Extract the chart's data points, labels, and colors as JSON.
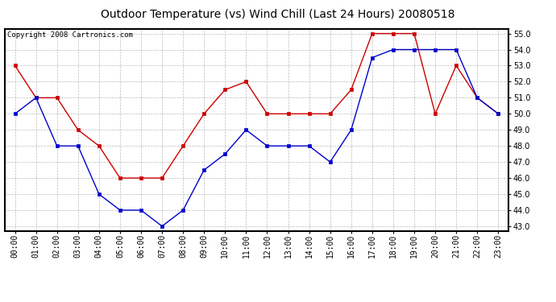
{
  "title": "Outdoor Temperature (vs) Wind Chill (Last 24 Hours) 20080518",
  "copyright_text": "Copyright 2008 Cartronics.com",
  "x_labels": [
    "00:00",
    "01:00",
    "02:00",
    "03:00",
    "04:00",
    "05:00",
    "06:00",
    "07:00",
    "08:00",
    "09:00",
    "10:00",
    "11:00",
    "12:00",
    "13:00",
    "14:00",
    "15:00",
    "16:00",
    "17:00",
    "18:00",
    "19:00",
    "20:00",
    "21:00",
    "22:00",
    "23:00"
  ],
  "red_line": [
    53.0,
    51.0,
    51.0,
    49.0,
    48.0,
    46.0,
    46.0,
    46.0,
    48.0,
    50.0,
    51.5,
    52.0,
    50.0,
    50.0,
    50.0,
    50.0,
    51.5,
    55.0,
    55.0,
    55.0,
    50.0,
    53.0,
    51.0,
    50.0
  ],
  "blue_line": [
    50.0,
    51.0,
    48.0,
    48.0,
    45.0,
    44.0,
    44.0,
    43.0,
    44.0,
    46.5,
    47.5,
    49.0,
    48.0,
    48.0,
    48.0,
    47.0,
    49.0,
    53.5,
    54.0,
    54.0,
    54.0,
    54.0,
    51.0,
    50.0
  ],
  "ylim_min": 43.0,
  "ylim_max": 55.0,
  "yticks": [
    43.0,
    44.0,
    45.0,
    46.0,
    47.0,
    48.0,
    49.0,
    50.0,
    51.0,
    52.0,
    53.0,
    54.0,
    55.0
  ],
  "red_color": "#cc0000",
  "blue_color": "#0000cc",
  "bg_color": "#ffffff",
  "grid_color": "#bbbbbb",
  "title_fontsize": 10,
  "tick_fontsize": 7,
  "copyright_fontsize": 6.5
}
